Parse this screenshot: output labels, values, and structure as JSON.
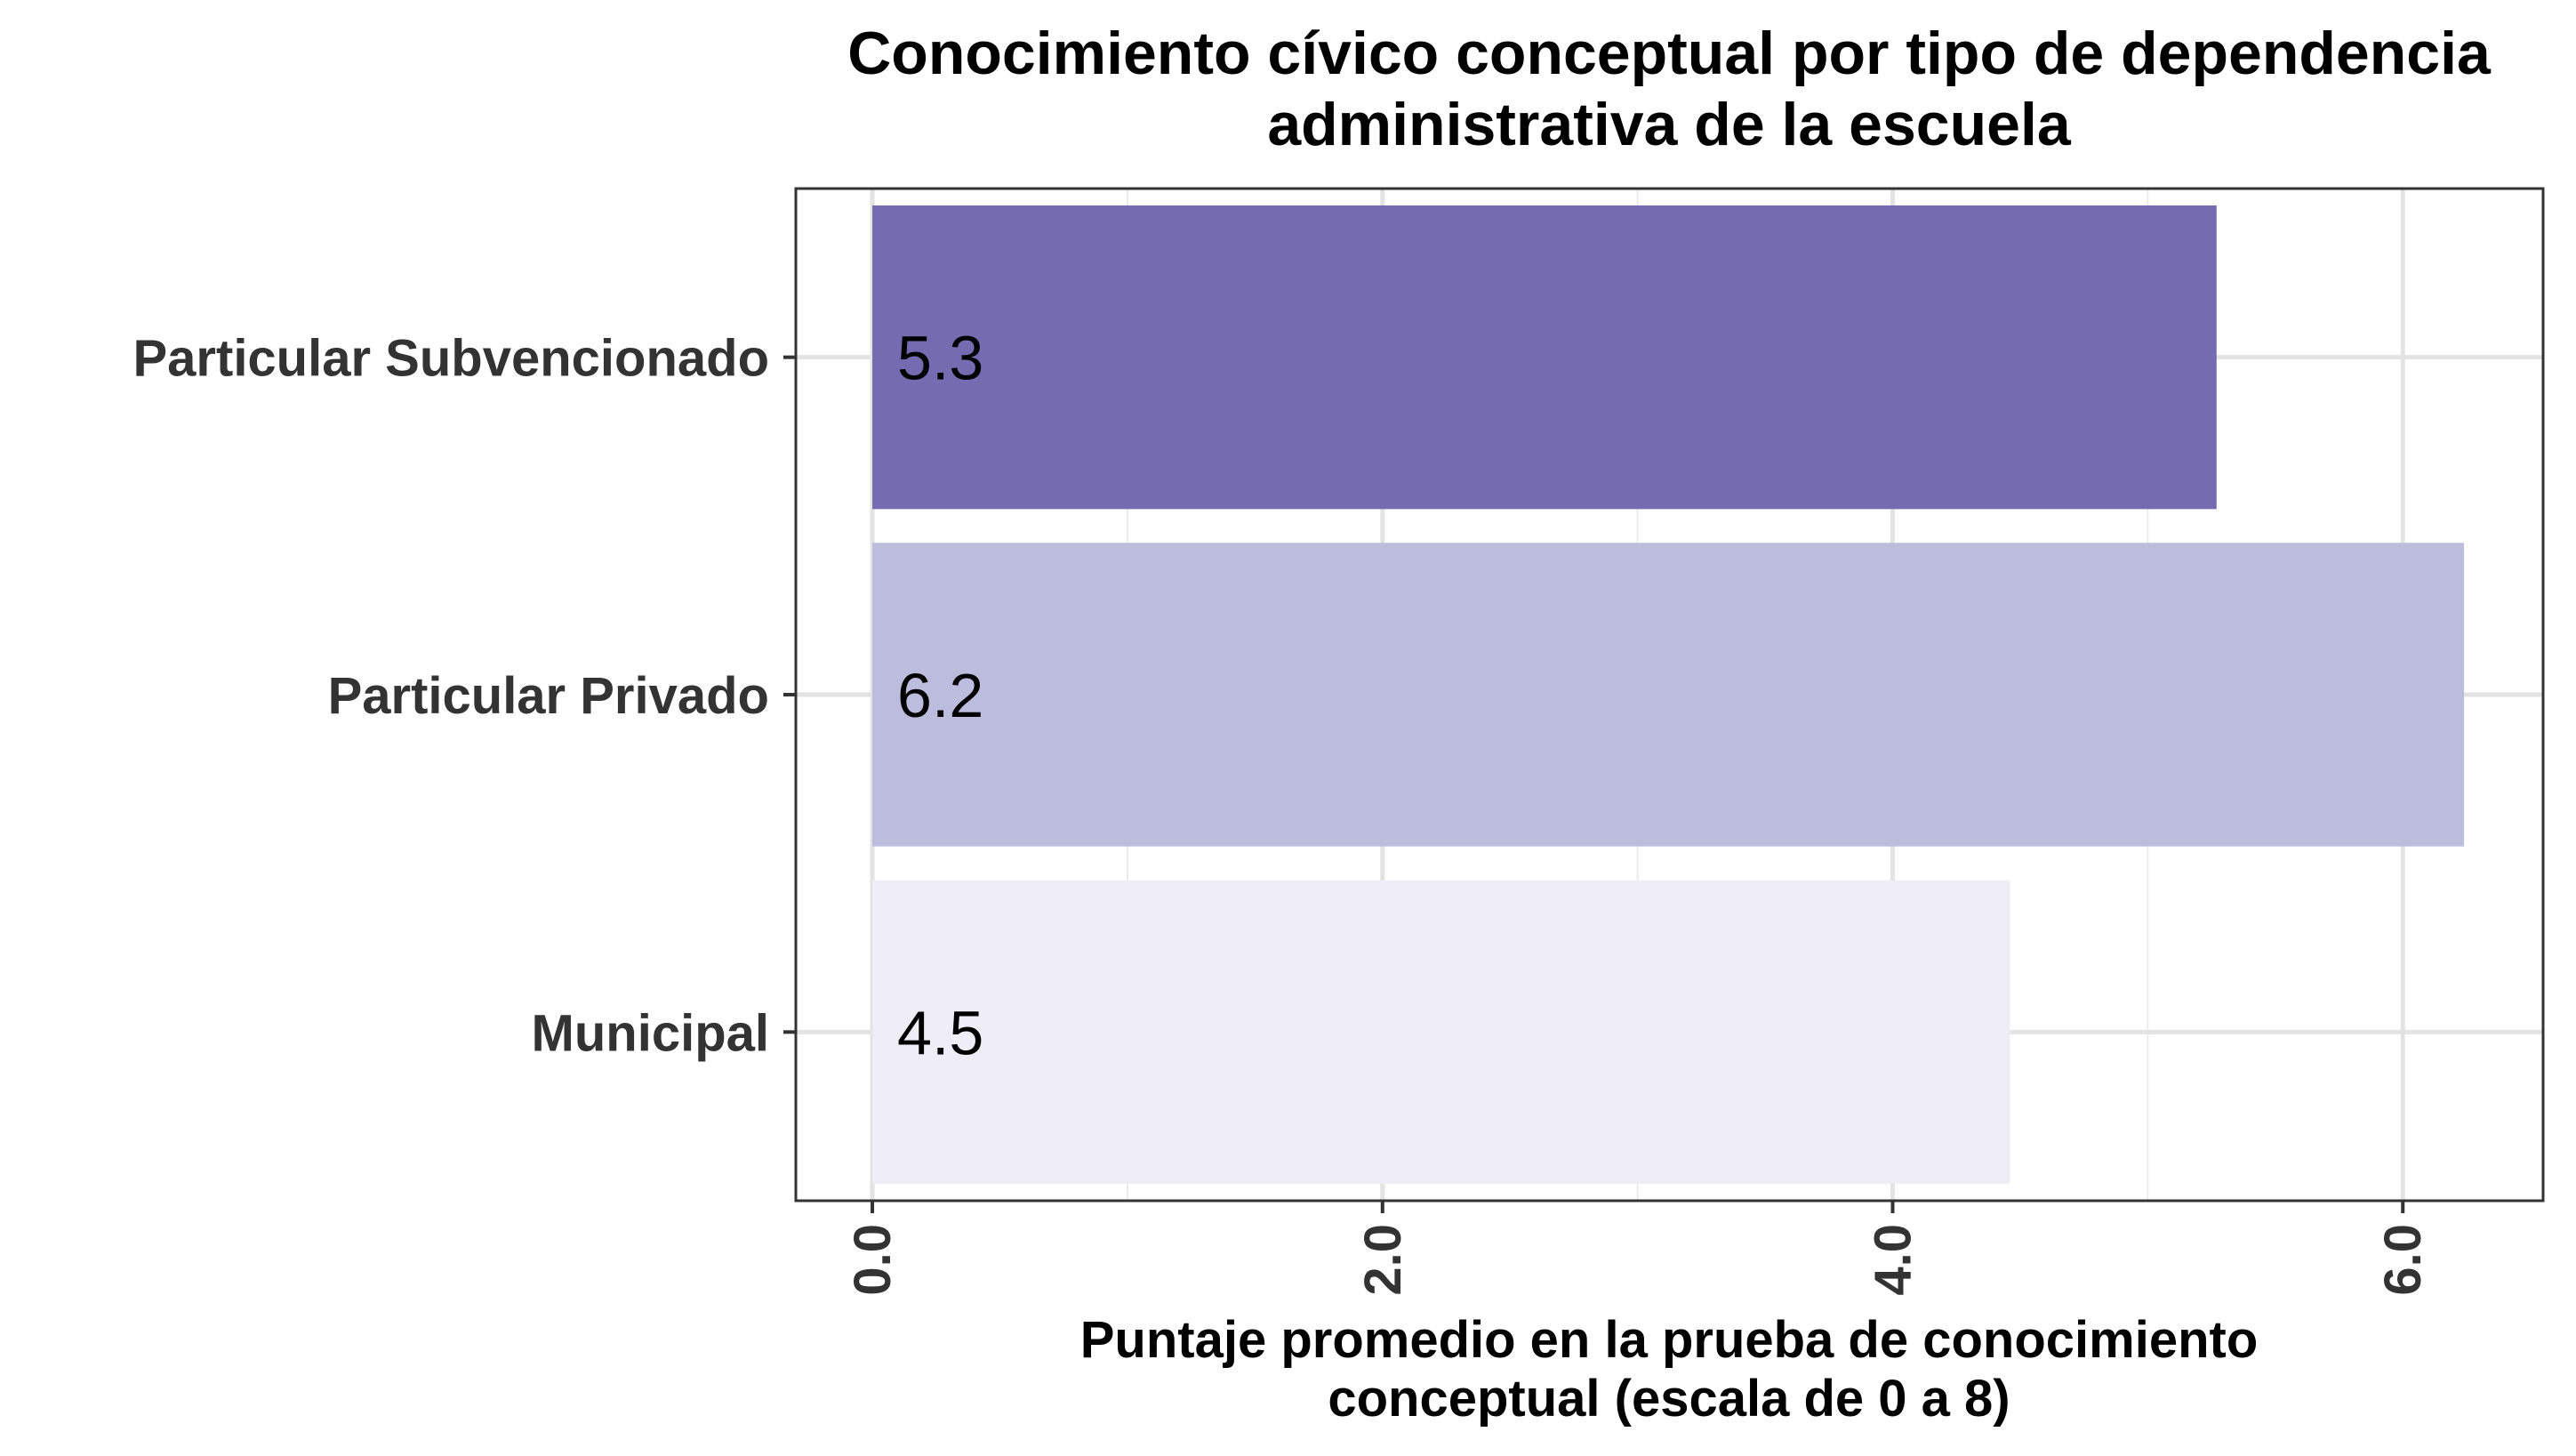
{
  "chart_data": {
    "type": "bar",
    "orientation": "horizontal",
    "title": "Conocimiento cívico conceptual por tipo de dependencia administrativa de la escuela",
    "title_lines": [
      "Conocimiento cívico conceptual por tipo de dependencia",
      "administrativa de la escuela"
    ],
    "xlabel": "Puntaje promedio en la prueba de conocimiento conceptual (escala de 0 a 8)",
    "xlabel_lines": [
      "Puntaje promedio en la prueba de conocimiento",
      "conceptual (escala de 0 a 8)"
    ],
    "ylabel": "",
    "categories": [
      "Particular Subvencionado",
      "Particular Privado",
      "Municipal"
    ],
    "values": [
      5.27,
      6.24,
      4.46
    ],
    "value_labels": [
      "5.3",
      "6.2",
      "4.5"
    ],
    "colors": [
      "#756bb1",
      "#bcbddc",
      "#efedf5"
    ],
    "xticks": [
      0,
      2,
      4,
      6
    ],
    "xtick_labels": [
      "0.0",
      "2.0",
      "4.0",
      "6.0"
    ],
    "xlim": [
      -0.3,
      6.55
    ],
    "grid": true,
    "legend": "none"
  }
}
